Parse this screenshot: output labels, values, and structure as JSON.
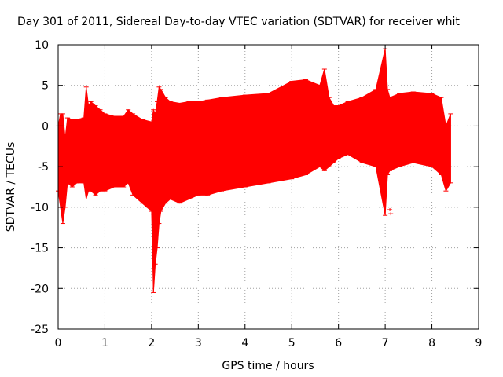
{
  "chart_data": {
    "type": "scatter",
    "style": "dense error-bar envelope (errorbars)",
    "title": "Day 301 of 2011, Sidereal Day-to-day VTEC variation (SDTVAR) for receiver whit",
    "xlabel": "GPS time / hours",
    "ylabel": "SDTVAR / TECUs",
    "xlim": [
      0,
      9
    ],
    "ylim": [
      -25,
      10
    ],
    "xticks": [
      0,
      1,
      2,
      3,
      4,
      5,
      6,
      7,
      8,
      9
    ],
    "yticks": [
      -25,
      -20,
      -15,
      -10,
      -5,
      0,
      5,
      10
    ],
    "grid": true,
    "grid_style": "dotted",
    "legend": "none",
    "series": [
      {
        "name": "SDTVAR",
        "color": "#ff0000",
        "x": [
          0.0,
          0.05,
          0.1,
          0.15,
          0.2,
          0.3,
          0.4,
          0.55,
          0.6,
          0.65,
          0.7,
          0.8,
          0.9,
          1.0,
          1.2,
          1.4,
          1.5,
          1.6,
          1.8,
          2.0,
          2.04,
          2.08,
          2.12,
          2.16,
          2.2,
          2.3,
          2.4,
          2.6,
          2.8,
          3.0,
          3.2,
          3.5,
          4.0,
          4.5,
          5.0,
          5.3,
          5.6,
          5.7,
          5.8,
          5.9,
          6.0,
          6.2,
          6.5,
          6.8,
          7.0,
          7.05,
          7.1,
          7.3,
          7.6,
          8.0,
          8.2,
          8.3,
          8.4
        ],
        "upper": [
          0.0,
          1.5,
          1.5,
          -1.5,
          1.0,
          0.8,
          0.8,
          1.0,
          4.8,
          2.5,
          3.0,
          2.5,
          2.0,
          1.5,
          1.2,
          1.2,
          2.0,
          1.5,
          0.8,
          0.5,
          2.0,
          1.5,
          3.0,
          4.8,
          4.5,
          3.5,
          3.0,
          2.8,
          3.0,
          3.0,
          3.2,
          3.5,
          3.8,
          4.0,
          5.5,
          5.7,
          5.0,
          7.0,
          3.5,
          2.5,
          2.5,
          3.0,
          3.5,
          4.5,
          9.5,
          4.5,
          3.5,
          4.0,
          4.2,
          4.0,
          3.5,
          0.0,
          1.5
        ],
        "lower": [
          -8.0,
          -10.0,
          -12.0,
          -10.0,
          -7.0,
          -7.5,
          -7.0,
          -7.0,
          -9.0,
          -8.0,
          -8.0,
          -8.5,
          -8.0,
          -8.0,
          -7.5,
          -7.5,
          -7.0,
          -8.5,
          -9.5,
          -10.5,
          -20.5,
          -17.0,
          -15.0,
          -12.0,
          -10.5,
          -9.5,
          -9.0,
          -9.5,
          -9.0,
          -8.5,
          -8.5,
          -8.0,
          -7.5,
          -7.0,
          -6.5,
          -6.0,
          -5.0,
          -5.5,
          -5.0,
          -4.5,
          -4.0,
          -3.5,
          -4.5,
          -5.0,
          -11.0,
          -6.0,
          -5.5,
          -5.0,
          -4.5,
          -5.0,
          -6.0,
          -8.0,
          -7.0
        ]
      }
    ],
    "outliers": [
      {
        "x": 7.1,
        "y": -10.3
      },
      {
        "x": 7.12,
        "y": -10.8
      }
    ]
  }
}
